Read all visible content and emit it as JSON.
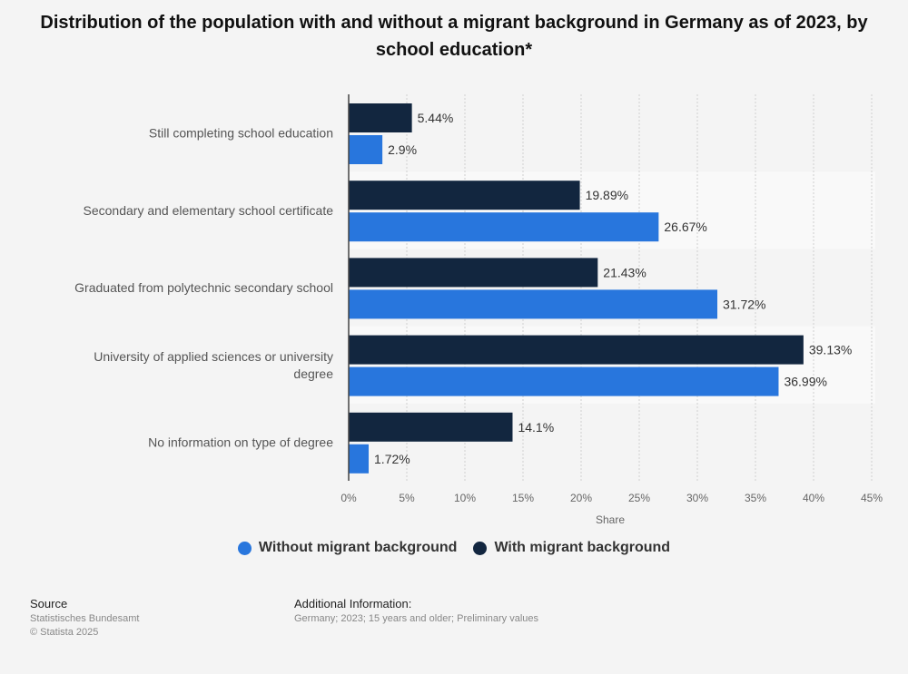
{
  "title": "Distribution of the population with and without a migrant background in Germany as of 2023, by school education*",
  "colors": {
    "without": "#2876dd",
    "with": "#12263f"
  },
  "chart_data": {
    "type": "bar",
    "orientation": "horizontal",
    "title": "Distribution of the population with and without a migrant background in Germany as of 2023, by school education*",
    "xlabel": "Share",
    "ylabel": "",
    "xlim": [
      0,
      45
    ],
    "x_ticks": [
      "0%",
      "5%",
      "10%",
      "15%",
      "20%",
      "25%",
      "30%",
      "35%",
      "40%",
      "45%"
    ],
    "grid": true,
    "legend_position": "bottom",
    "categories": [
      "Still completing school education",
      "Secondary and elementary school certificate",
      "Graduated from polytechnic secondary school",
      "University of applied sciences or university degree",
      "No information on type of degree"
    ],
    "series": [
      {
        "name": "With migrant background",
        "values": [
          5.44,
          19.89,
          21.43,
          39.13,
          14.1
        ],
        "labels": [
          "5.44%",
          "19.89%",
          "21.43%",
          "39.13%",
          "14.1%"
        ]
      },
      {
        "name": "Without migrant background",
        "values": [
          2.9,
          26.67,
          31.72,
          36.99,
          1.72
        ],
        "labels": [
          "2.9%",
          "26.67%",
          "31.72%",
          "36.99%",
          "1.72%"
        ]
      }
    ]
  },
  "legend": [
    {
      "label": "Without migrant background"
    },
    {
      "label": "With migrant background"
    }
  ],
  "footer": {
    "source_heading": "Source",
    "source_lines": [
      "Statistisches Bundesamt",
      "© Statista 2025"
    ],
    "info_heading": "Additional Information:",
    "info_text": "Germany; 2023; 15 years and older; Preliminary values"
  }
}
